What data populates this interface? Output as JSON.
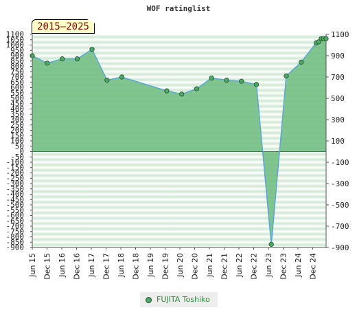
{
  "title": "WOF ratinglist",
  "period_badge": "2015–2025",
  "legend": {
    "label": "FUJITA Toshiko"
  },
  "colors": {
    "area_fill": "#6dbb7f",
    "line": "#5aa7d6",
    "marker": "#4da866",
    "marker_stroke": "#1f4d2a",
    "badge_text": "#8b0000",
    "legend_text": "#2e8b3a"
  },
  "chart_data": {
    "type": "area",
    "title": "WOF ratinglist",
    "xlabel": "",
    "ylabel": "",
    "ylim": [
      -900,
      1100
    ],
    "grid": true,
    "legend_position": "bottom-center",
    "x_tick_labels": [
      "Jun 15",
      "Dec 15",
      "Jun 16",
      "Dec 16",
      "Jun 17",
      "Dec 17",
      "Jun 18",
      "Dec 18",
      "Jun 19",
      "Dec 19",
      "Jun 20",
      "Dec 20",
      "Jun 21",
      "Dec 21",
      "Jun 22",
      "Dec 22",
      "Jun 23",
      "Dec 23",
      "Jun 24",
      "Dec 24"
    ],
    "y_ticks_left": [
      1100,
      1050,
      1000,
      950,
      900,
      850,
      800,
      750,
      700,
      650,
      600,
      550,
      500,
      450,
      400,
      350,
      300,
      250,
      200,
      150,
      100,
      50,
      0,
      -50,
      -100,
      -150,
      -200,
      -250,
      -300,
      -350,
      -400,
      -450,
      -500,
      -550,
      -600,
      -650,
      -700,
      -750,
      -800,
      -850,
      -900
    ],
    "y_ticks_left_labels": [
      "1100",
      "1050",
      "1000",
      "950",
      "900",
      "850",
      "800",
      "750",
      "700",
      "650",
      "600",
      "550",
      "500",
      "450",
      "400",
      "350",
      "300",
      "250",
      "200",
      "150",
      "100",
      "50",
      "0",
      "-50",
      "-100",
      "-150",
      "-200",
      "-250",
      "-300",
      "-350",
      "-400",
      "-450",
      "-500",
      "-550",
      "-600",
      "-650",
      "-700",
      "-750",
      "-800",
      "-850",
      "-900"
    ],
    "y_ticks_right": [
      1100,
      900,
      700,
      500,
      300,
      100,
      -100,
      -300,
      -500,
      -700,
      -900
    ],
    "y_ticks_right_labels": [
      "1100",
      "900",
      "700",
      "500",
      "300",
      "100",
      "-100",
      "-300",
      "-500",
      "-700",
      "-900"
    ],
    "series": [
      {
        "name": "FUJITA Toshiko",
        "points": [
          {
            "x": "2015-06-01",
            "y": 900
          },
          {
            "x": "2015-12-01",
            "y": 830
          },
          {
            "x": "2016-06-01",
            "y": 870
          },
          {
            "x": "2016-12-01",
            "y": 870
          },
          {
            "x": "2017-06-01",
            "y": 960
          },
          {
            "x": "2017-12-01",
            "y": 670
          },
          {
            "x": "2018-06-01",
            "y": 700
          },
          {
            "x": "2019-12-01",
            "y": 570
          },
          {
            "x": "2020-06-01",
            "y": 540
          },
          {
            "x": "2020-12-01",
            "y": 590
          },
          {
            "x": "2021-06-01",
            "y": 690
          },
          {
            "x": "2021-12-01",
            "y": 670
          },
          {
            "x": "2022-06-01",
            "y": 660
          },
          {
            "x": "2022-12-01",
            "y": 630
          },
          {
            "x": "2023-06-01",
            "y": -870
          },
          {
            "x": "2023-12-01",
            "y": 710
          },
          {
            "x": "2024-06-01",
            "y": 840
          },
          {
            "x": "2024-12-01",
            "y": 1020
          },
          {
            "x": "2025-01-01",
            "y": 1030
          },
          {
            "x": "2025-02-01",
            "y": 1060
          },
          {
            "x": "2025-03-01",
            "y": 1060
          },
          {
            "x": "2025-04-01",
            "y": 1060
          }
        ]
      }
    ]
  }
}
